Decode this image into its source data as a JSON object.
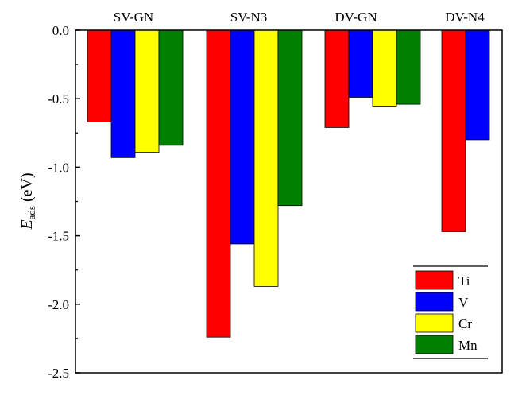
{
  "chart_data": {
    "type": "bar",
    "categories": [
      "SV-GN",
      "SV-N3",
      "DV-GN",
      "DV-N4"
    ],
    "series": [
      {
        "name": "Ti",
        "color": "#ff0000",
        "values": [
          -0.67,
          -2.24,
          -0.71,
          -1.47
        ]
      },
      {
        "name": "V",
        "color": "#0000ff",
        "values": [
          -0.93,
          -1.56,
          -0.49,
          -0.8
        ]
      },
      {
        "name": "Cr",
        "color": "#ffff00",
        "values": [
          -0.89,
          -1.87,
          -0.56,
          null
        ]
      },
      {
        "name": "Mn",
        "color": "#008000",
        "values": [
          -0.84,
          -1.28,
          -0.54,
          null
        ]
      }
    ],
    "title": "",
    "xlabel": "",
    "ylabel": {
      "main": "E",
      "subscript": "ads",
      "unit": " (eV)"
    },
    "ylim": [
      -2.5,
      0.0
    ],
    "yticks": [
      0.0,
      -0.5,
      -1.0,
      -1.5,
      -2.0,
      -2.5
    ],
    "ytick_labels": [
      "0.0",
      "-0.5",
      "-1.0",
      "-1.5",
      "-2.0",
      "-2.5"
    ],
    "legend_position": "bottom-right",
    "grid": false
  }
}
